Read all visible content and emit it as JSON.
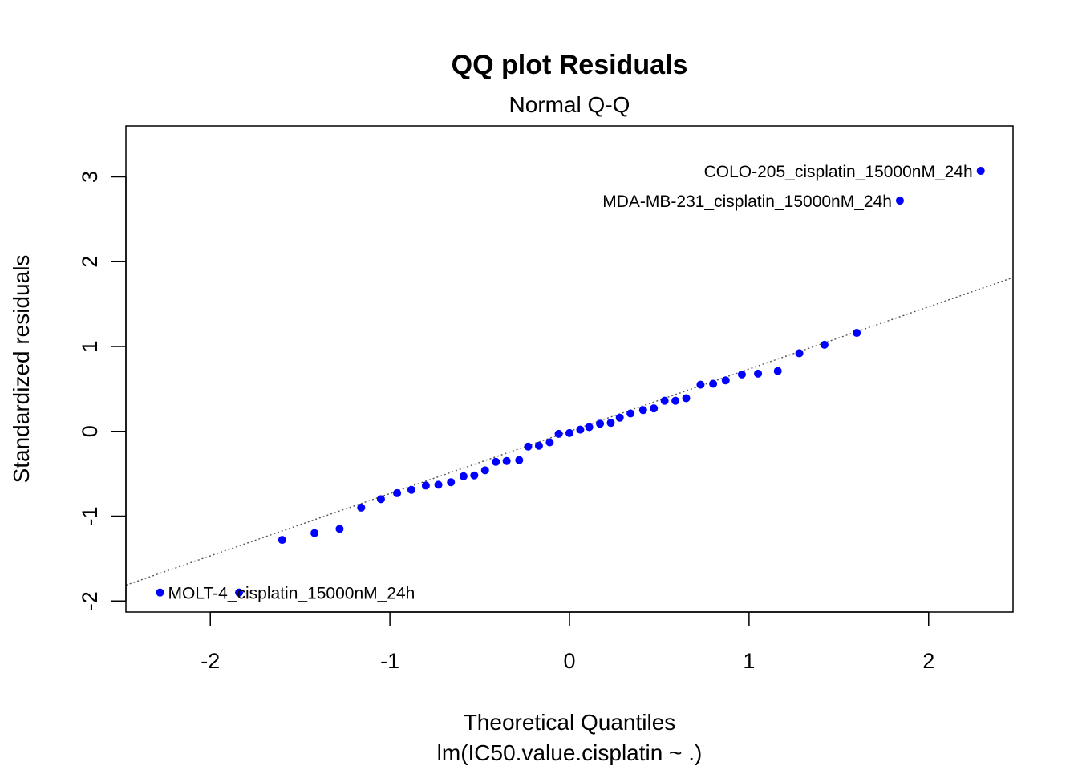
{
  "chart_data": {
    "type": "scatter",
    "title": "QQ plot Residuals",
    "subtitle": "Normal Q-Q",
    "xlabel": "Theoretical Quantiles",
    "xlabel2": "lm(IC50.value.cisplatin ~ .)",
    "ylabel": "Standardized residuals",
    "xlim": [
      -2.47,
      2.47
    ],
    "ylim": [
      -2.13,
      3.6
    ],
    "x_ticks": [
      -2,
      -1,
      0,
      1,
      2
    ],
    "y_ticks": [
      -2,
      -1,
      0,
      1,
      2,
      3
    ],
    "x_tick_labels": [
      "-2",
      "-1",
      "0",
      "1",
      "2"
    ],
    "y_tick_labels": [
      "-2",
      "-1",
      "0",
      "1",
      "2",
      "3"
    ],
    "point_color": "#0000ff",
    "line_color": "#555555",
    "reference_line": {
      "slope": 0.734,
      "intercept": 0.0
    },
    "points": [
      {
        "x": -2.28,
        "y": -1.9
      },
      {
        "x": -1.84,
        "y": -1.9
      },
      {
        "x": -1.6,
        "y": -1.28
      },
      {
        "x": -1.42,
        "y": -1.2
      },
      {
        "x": -1.28,
        "y": -1.15
      },
      {
        "x": -1.16,
        "y": -0.9
      },
      {
        "x": -1.05,
        "y": -0.8
      },
      {
        "x": -0.96,
        "y": -0.73
      },
      {
        "x": -0.88,
        "y": -0.69
      },
      {
        "x": -0.8,
        "y": -0.64
      },
      {
        "x": -0.73,
        "y": -0.63
      },
      {
        "x": -0.66,
        "y": -0.6
      },
      {
        "x": -0.59,
        "y": -0.53
      },
      {
        "x": -0.53,
        "y": -0.52
      },
      {
        "x": -0.47,
        "y": -0.46
      },
      {
        "x": -0.41,
        "y": -0.36
      },
      {
        "x": -0.35,
        "y": -0.35
      },
      {
        "x": -0.28,
        "y": -0.34
      },
      {
        "x": -0.23,
        "y": -0.18
      },
      {
        "x": -0.17,
        "y": -0.17
      },
      {
        "x": -0.11,
        "y": -0.13
      },
      {
        "x": -0.06,
        "y": -0.03
      },
      {
        "x": 0.0,
        "y": -0.02
      },
      {
        "x": 0.06,
        "y": 0.02
      },
      {
        "x": 0.11,
        "y": 0.05
      },
      {
        "x": 0.17,
        "y": 0.09
      },
      {
        "x": 0.23,
        "y": 0.1
      },
      {
        "x": 0.28,
        "y": 0.16
      },
      {
        "x": 0.34,
        "y": 0.21
      },
      {
        "x": 0.41,
        "y": 0.25
      },
      {
        "x": 0.47,
        "y": 0.27
      },
      {
        "x": 0.53,
        "y": 0.36
      },
      {
        "x": 0.59,
        "y": 0.36
      },
      {
        "x": 0.65,
        "y": 0.39
      },
      {
        "x": 0.73,
        "y": 0.55
      },
      {
        "x": 0.8,
        "y": 0.56
      },
      {
        "x": 0.87,
        "y": 0.6
      },
      {
        "x": 0.96,
        "y": 0.67
      },
      {
        "x": 1.05,
        "y": 0.68
      },
      {
        "x": 1.16,
        "y": 0.71
      },
      {
        "x": 1.28,
        "y": 0.92
      },
      {
        "x": 1.42,
        "y": 1.02
      },
      {
        "x": 1.6,
        "y": 1.16
      },
      {
        "x": 1.84,
        "y": 2.72
      },
      {
        "x": 2.29,
        "y": 3.07
      }
    ],
    "annotations": [
      {
        "text": "COLO-205_cisplatin_15000nM_24h",
        "x": 2.29,
        "y": 3.07,
        "anchor": "left"
      },
      {
        "text": "MDA-MB-231_cisplatin_15000nM_24h",
        "x": 1.84,
        "y": 2.72,
        "anchor": "left"
      },
      {
        "text": "MOLT-4_cisplatin_15000nM_24h",
        "x": -2.28,
        "y": -1.9,
        "anchor": "right"
      }
    ]
  }
}
